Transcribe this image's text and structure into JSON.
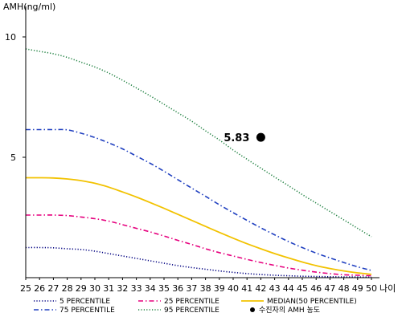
{
  "chart_data": {
    "type": "line",
    "ylabel": "AMH(ng/ml)",
    "xlabel": "나이",
    "xlim": [
      25,
      50
    ],
    "ylim": [
      0,
      11
    ],
    "x": [
      25,
      26,
      27,
      28,
      29,
      30,
      31,
      32,
      33,
      34,
      35,
      36,
      37,
      38,
      39,
      40,
      41,
      42,
      43,
      44,
      45,
      46,
      47,
      48,
      49,
      50
    ],
    "x_tick_labels": [
      "25",
      "26",
      "27",
      "28",
      "29",
      "30",
      "31",
      "32",
      "33",
      "34",
      "35",
      "36",
      "37",
      "38",
      "39",
      "40",
      "41",
      "42",
      "43",
      "44",
      "45",
      "46",
      "47",
      "48",
      "49",
      "50"
    ],
    "y_ticks": [
      5,
      10
    ],
    "y_tick_labels": [
      "5",
      "10"
    ],
    "series": [
      {
        "name": "5 PERCENTILE",
        "color": "#000080",
        "dash": "dotted",
        "values": [
          1.25,
          1.25,
          1.24,
          1.2,
          1.17,
          1.1,
          1.0,
          0.9,
          0.8,
          0.7,
          0.6,
          0.5,
          0.42,
          0.35,
          0.28,
          0.22,
          0.17,
          0.13,
          0.1,
          0.08,
          0.06,
          0.05,
          0.04,
          0.03,
          0.03,
          0.02
        ]
      },
      {
        "name": "25 PERCENTILE",
        "color": "#e6007e",
        "dash": "dashdot",
        "values": [
          2.6,
          2.6,
          2.6,
          2.58,
          2.52,
          2.45,
          2.35,
          2.2,
          2.05,
          1.9,
          1.73,
          1.55,
          1.38,
          1.2,
          1.04,
          0.9,
          0.76,
          0.63,
          0.51,
          0.4,
          0.31,
          0.23,
          0.17,
          0.12,
          0.1,
          0.08
        ]
      },
      {
        "name": "MEDIAN(50 PERCENTILE)",
        "color": "#f2c200",
        "dash": "solid",
        "values": [
          4.15,
          4.15,
          4.14,
          4.1,
          4.03,
          3.92,
          3.76,
          3.56,
          3.35,
          3.12,
          2.88,
          2.63,
          2.38,
          2.13,
          1.88,
          1.64,
          1.41,
          1.2,
          1.0,
          0.82,
          0.65,
          0.5,
          0.38,
          0.28,
          0.2,
          0.14
        ]
      },
      {
        "name": "75 PERCENTILE",
        "color": "#2040c0",
        "dash": "dashdot",
        "values": [
          6.15,
          6.15,
          6.15,
          6.14,
          6.0,
          5.82,
          5.6,
          5.35,
          5.05,
          4.75,
          4.42,
          4.07,
          3.72,
          3.38,
          3.03,
          2.7,
          2.38,
          2.07,
          1.78,
          1.5,
          1.25,
          1.02,
          0.82,
          0.63,
          0.45,
          0.3
        ]
      },
      {
        "name": "95 PERCENTILE",
        "color": "#1f8040",
        "dash": "dotted",
        "values": [
          9.5,
          9.4,
          9.3,
          9.15,
          8.95,
          8.75,
          8.5,
          8.2,
          7.88,
          7.55,
          7.2,
          6.85,
          6.5,
          6.1,
          5.72,
          5.3,
          4.92,
          4.55,
          4.18,
          3.82,
          3.45,
          3.1,
          2.75,
          2.4,
          2.05,
          1.7
        ]
      }
    ],
    "point": {
      "name": "수진자의 AMH 농도",
      "x": 42,
      "y": 5.83,
      "label": "5.83",
      "color": "#000000"
    },
    "legend": {
      "position": "bottom",
      "order": [
        "5 PERCENTILE",
        "25 PERCENTILE",
        "MEDIAN(50 PERCENTILE)",
        "75 PERCENTILE",
        "95 PERCENTILE",
        "수진자의 AMH 농도"
      ]
    }
  }
}
